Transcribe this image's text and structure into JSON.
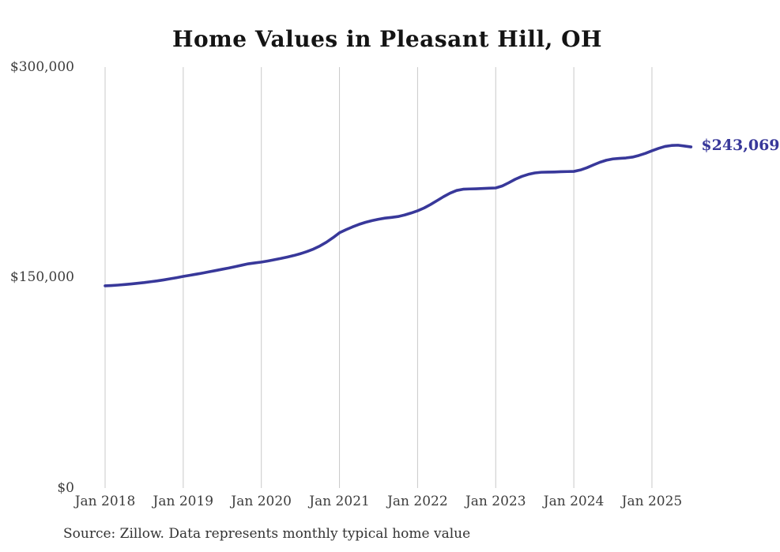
{
  "page": {
    "title": "Home Values in Pleasant Hill, OH",
    "end_value_label": "$243,069",
    "source_note": "Source: Zillow. Data represents monthly typical home value"
  },
  "colors": {
    "background": "#ffffff",
    "line": "#38389a",
    "end_label": "#38389a",
    "grid": "#c9c9c9",
    "axis_text": "#3d3d3d",
    "title_text": "#141414",
    "source_text": "#333333"
  },
  "chart_data": {
    "type": "line",
    "title": "Home Values in Pleasant Hill, OH",
    "series_name": "Monthly typical home value",
    "unit": "USD",
    "frequency": "monthly",
    "x_start": "Jan 2018",
    "x_end": "Jul 2025",
    "x_tick_labels": [
      "Jan 2018",
      "Jan 2019",
      "Jan 2020",
      "Jan 2021",
      "Jan 2022",
      "Jan 2023",
      "Jan 2024",
      "Jan 2025"
    ],
    "y_ticks": [
      {
        "value": 0,
        "label": "$0"
      },
      {
        "value": 150000,
        "label": "$150,000"
      },
      {
        "value": 300000,
        "label": "$300,000"
      }
    ],
    "ylim": [
      0,
      300000
    ],
    "grid": "vertical",
    "legend": "none",
    "last_value": 243069,
    "last_value_label": "$243,069",
    "values": [
      144000,
      144200,
      144500,
      144900,
      145300,
      145800,
      146300,
      146900,
      147500,
      148200,
      149000,
      149800,
      150700,
      151500,
      152300,
      153100,
      154000,
      154900,
      155800,
      156700,
      157700,
      158700,
      159700,
      160300,
      160900,
      161700,
      162600,
      163500,
      164500,
      165600,
      166900,
      168400,
      170200,
      172400,
      175100,
      178300,
      181800,
      184000,
      186000,
      187800,
      189300,
      190500,
      191500,
      192300,
      192800,
      193400,
      194500,
      195900,
      197500,
      199500,
      202000,
      204800,
      207600,
      210100,
      212000,
      212900,
      213100,
      213200,
      213400,
      213600,
      213800,
      215200,
      217500,
      220000,
      222000,
      223500,
      224500,
      225000,
      225100,
      225200,
      225400,
      225500,
      225600,
      226600,
      228200,
      230200,
      232100,
      233600,
      234500,
      234900,
      235200,
      235800,
      237000,
      238500,
      240300,
      242000,
      243400,
      244100,
      244300,
      243700,
      243069
    ]
  }
}
